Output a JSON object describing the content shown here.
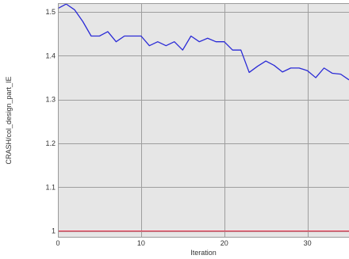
{
  "chart_data": {
    "type": "line",
    "title": "",
    "xlabel": "Iteration",
    "ylabel": "CRASH/col_design_part_IE",
    "xlim": [
      0,
      35
    ],
    "ylim": [
      0.985,
      1.52
    ],
    "x_ticks": [
      0,
      10,
      20,
      30
    ],
    "x_tick_labels": [
      "0",
      "10",
      "20",
      "30"
    ],
    "y_ticks": [
      1,
      1.1,
      1.2,
      1.3,
      1.4,
      1.5
    ],
    "y_tick_labels": [
      "1",
      "1.1",
      "1.2",
      "1.3",
      "1.4",
      "1.5"
    ],
    "grid": true,
    "legend": "none",
    "series": [
      {
        "color": "#2a2ad6",
        "x": [
          0,
          1,
          2,
          3,
          4,
          5,
          6,
          7,
          8,
          9,
          10,
          11,
          12,
          13,
          14,
          15,
          16,
          17,
          18,
          19,
          20,
          21,
          22,
          23,
          24,
          25,
          26,
          27,
          28,
          29,
          30,
          31,
          32,
          33,
          34,
          35
        ],
        "y": [
          1.508,
          1.518,
          1.505,
          1.478,
          1.445,
          1.445,
          1.455,
          1.432,
          1.445,
          1.445,
          1.445,
          1.423,
          1.432,
          1.423,
          1.432,
          1.413,
          1.445,
          1.432,
          1.44,
          1.432,
          1.432,
          1.413,
          1.413,
          1.362,
          1.376,
          1.388,
          1.378,
          1.363,
          1.372,
          1.372,
          1.366,
          1.35,
          1.372,
          1.36,
          1.358,
          1.345
        ]
      },
      {
        "color": "#e8485f",
        "x": [
          0,
          35
        ],
        "y": [
          1.0,
          1.0
        ]
      }
    ]
  }
}
